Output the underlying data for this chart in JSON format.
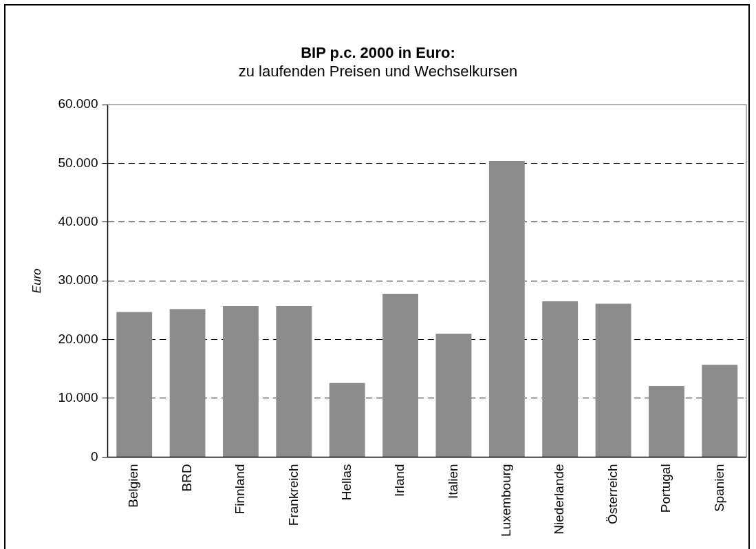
{
  "chart_data": {
    "type": "bar",
    "title": "BIP p.c. 2000 in Euro:",
    "subtitle": "zu laufenden Preisen und Wechselkursen",
    "ylabel": "Euro",
    "categories": [
      "Belgien",
      "BRD",
      "Finnland",
      "Frankreich",
      "Hellas",
      "Irland",
      "Italien",
      "Luxembourg",
      "Niederlande",
      "Österreich",
      "Portugal",
      "Spanien"
    ],
    "values": [
      24700,
      25200,
      25700,
      25700,
      12600,
      27800,
      21000,
      50400,
      26500,
      26100,
      12100,
      15700
    ],
    "color": "#8c8c8c",
    "ylim": [
      0,
      60000
    ],
    "yticks": [
      {
        "value": 0,
        "label": "0"
      },
      {
        "value": 10000,
        "label": "10.000"
      },
      {
        "value": 20000,
        "label": "20.000"
      },
      {
        "value": 30000,
        "label": "30.000"
      },
      {
        "value": 40000,
        "label": "40.000"
      },
      {
        "value": 50000,
        "label": "50.000"
      },
      {
        "value": 60000,
        "label": "60.000"
      }
    ],
    "grid": "y",
    "legend": false
  }
}
